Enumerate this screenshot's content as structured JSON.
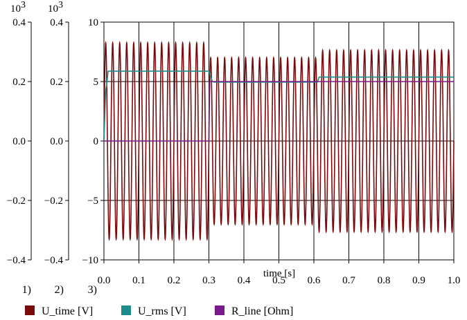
{
  "chart_data": {
    "type": "line",
    "xlabel": "time [s]",
    "xlim": [
      0.0,
      1.0
    ],
    "x_ticks": [
      0.0,
      0.1,
      0.2,
      0.3,
      0.4,
      0.5,
      0.6,
      0.7,
      0.8,
      0.9,
      1.0
    ],
    "x_tick_labels": [
      "0.0",
      "0.1",
      "0.2",
      "0.3",
      "0.4",
      "0.5",
      "0.6",
      "0.7",
      "0.8",
      "0.9",
      "1.0"
    ],
    "grid": true,
    "legend_placement": "bottom",
    "axes": [
      {
        "id": "1",
        "exponent_label": "10",
        "exponent": "3",
        "ylim": [
          -0.4,
          0.4
        ],
        "tick_labels": [
          "0.4",
          "0.2",
          "0.0",
          "−0.2",
          "−0.4"
        ],
        "ticks": [
          0.4,
          0.2,
          0.0,
          -0.2,
          -0.4
        ]
      },
      {
        "id": "2",
        "exponent_label": "10",
        "exponent": "3",
        "ylim": [
          -0.4,
          0.4
        ],
        "tick_labels": [
          "0.4",
          "0.2",
          "0.0",
          "−0.2",
          "−0.4"
        ],
        "ticks": [
          0.4,
          0.2,
          0.0,
          -0.2,
          -0.4
        ]
      },
      {
        "id": "3",
        "ylim": [
          -10,
          10
        ],
        "tick_labels": [
          "10",
          "5",
          "0",
          "−5",
          "−10"
        ],
        "ticks": [
          10,
          5,
          0,
          -5,
          -10
        ]
      }
    ],
    "axis_ids": [
      "1)",
      "2)",
      "3)"
    ],
    "series": [
      {
        "name": "U_time [V]",
        "axis": "1",
        "color": "#7b0a0a",
        "kind": "sinusoid",
        "frequency_hz": 50,
        "segments": [
          {
            "t_start": 0.0,
            "t_end": 0.3,
            "amplitude": 0.33
          },
          {
            "t_start": 0.3,
            "t_end": 0.61,
            "amplitude": 0.28
          },
          {
            "t_start": 0.61,
            "t_end": 1.0,
            "amplitude": 0.305
          }
        ]
      },
      {
        "name": "U_rms [V]",
        "axis": "2",
        "color": "#1e8c8c",
        "x": [
          0.0,
          0.005,
          0.008,
          0.012,
          0.3,
          0.31,
          0.315,
          0.61,
          0.615,
          1.0
        ],
        "y": [
          0.0,
          0.17,
          0.19,
          0.235,
          0.235,
          0.2,
          0.198,
          0.198,
          0.215,
          0.215
        ]
      },
      {
        "name": "R_line [Ohm]",
        "axis": "3",
        "color": "#7a1a8c",
        "x": [
          0.0,
          0.3,
          0.301,
          0.61,
          0.611,
          1.0
        ],
        "y": [
          0.0,
          0.0,
          5.0,
          5.0,
          5.0,
          5.0
        ]
      }
    ]
  }
}
